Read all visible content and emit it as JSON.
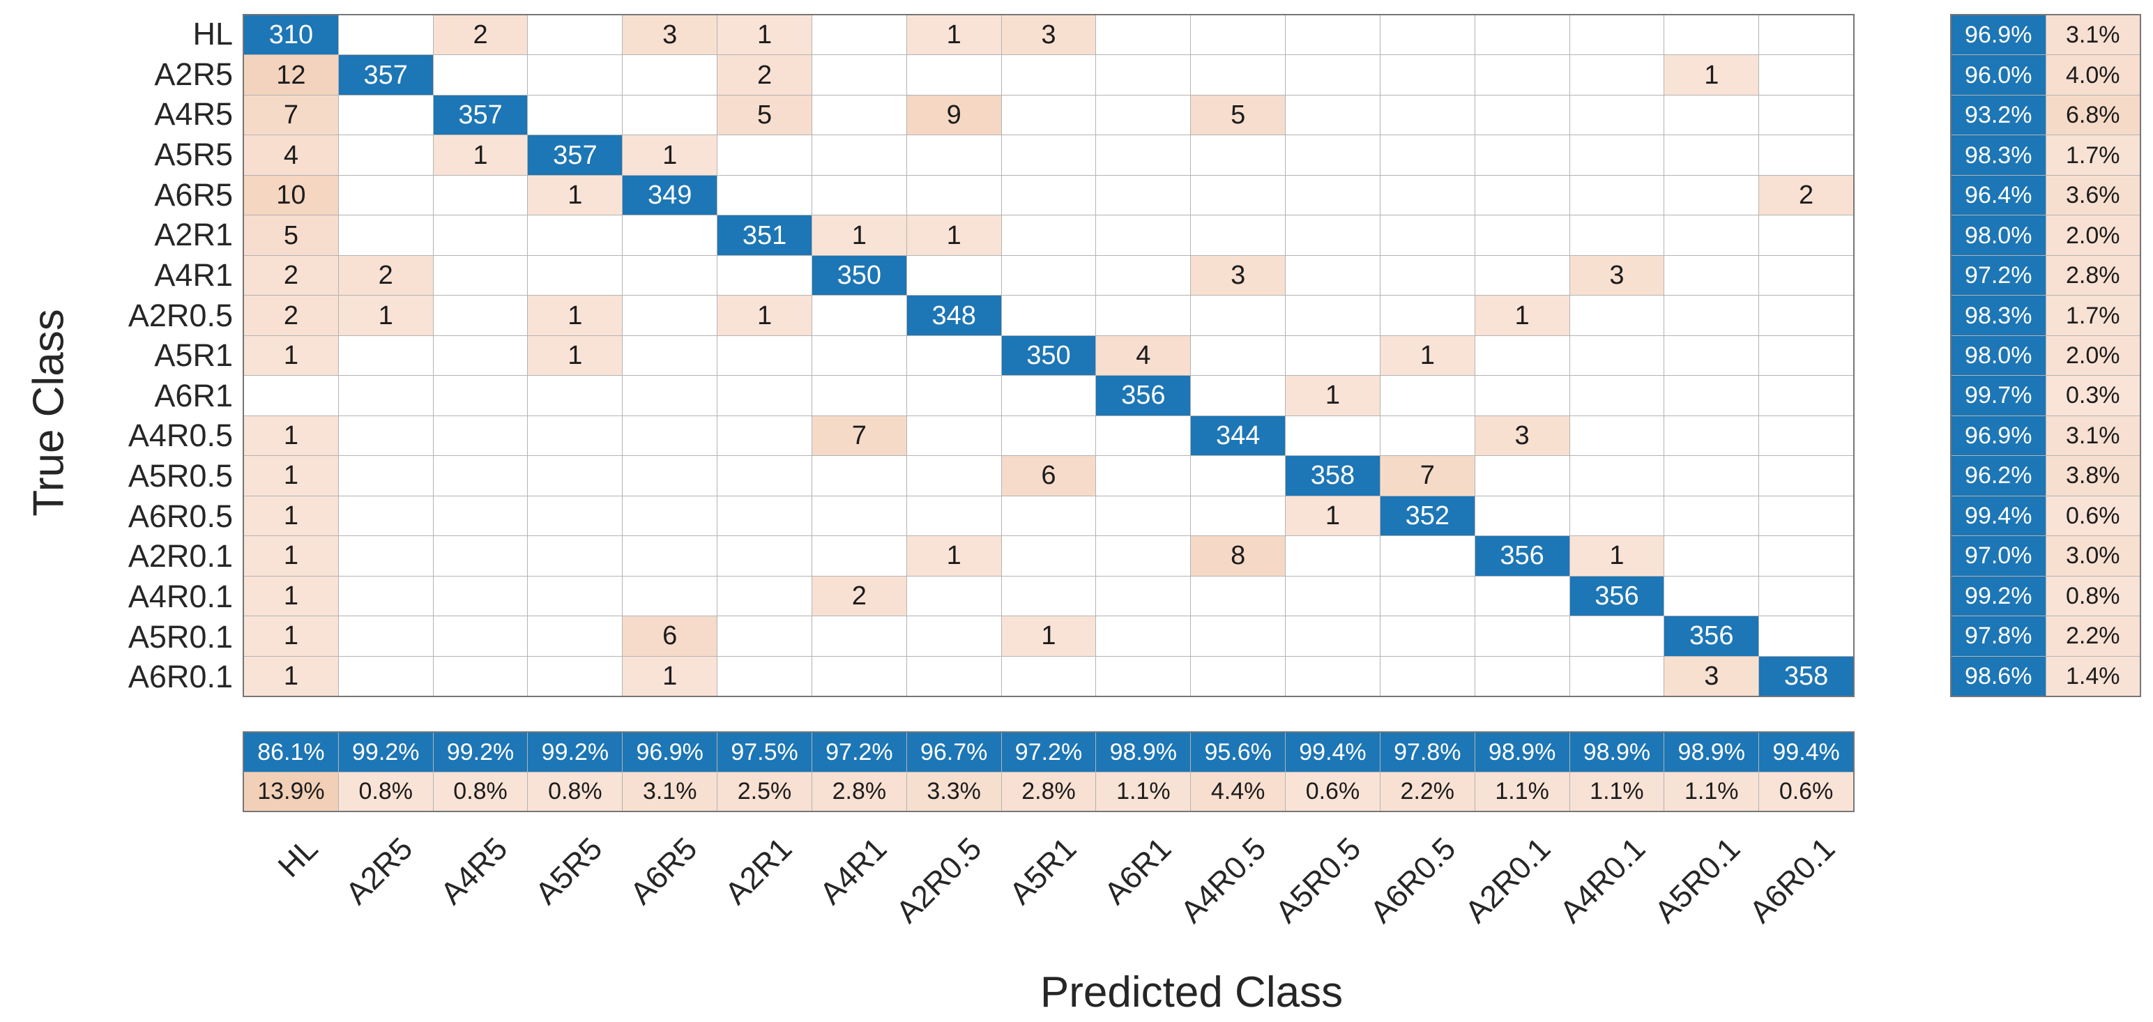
{
  "figure": {
    "x_axis_title": "Predicted Class",
    "y_axis_title": "True Class"
  },
  "chart_data": {
    "type": "heatmap",
    "subtype": "confusion-matrix",
    "title": "",
    "xlabel": "Predicted Class",
    "ylabel": "True Class",
    "legend_position": "none",
    "grid": true,
    "classes": [
      "HL",
      "A2R5",
      "A4R5",
      "A5R5",
      "A6R5",
      "A2R1",
      "A4R1",
      "A2R0.5",
      "A5R1",
      "A6R1",
      "A4R0.5",
      "A5R0.5",
      "A6R0.5",
      "A2R0.1",
      "A4R0.1",
      "A5R0.1",
      "A6R0.1"
    ],
    "matrix": [
      [
        310,
        0,
        2,
        0,
        3,
        1,
        0,
        1,
        3,
        0,
        0,
        0,
        0,
        0,
        0,
        0,
        0
      ],
      [
        12,
        357,
        0,
        0,
        0,
        2,
        0,
        0,
        0,
        0,
        0,
        0,
        0,
        0,
        0,
        1,
        0
      ],
      [
        7,
        0,
        357,
        0,
        0,
        5,
        0,
        9,
        0,
        0,
        5,
        0,
        0,
        0,
        0,
        0,
        0
      ],
      [
        4,
        0,
        1,
        357,
        1,
        0,
        0,
        0,
        0,
        0,
        0,
        0,
        0,
        0,
        0,
        0,
        0
      ],
      [
        10,
        0,
        0,
        1,
        349,
        0,
        0,
        0,
        0,
        0,
        0,
        0,
        0,
        0,
        0,
        0,
        2
      ],
      [
        5,
        0,
        0,
        0,
        0,
        351,
        1,
        1,
        0,
        0,
        0,
        0,
        0,
        0,
        0,
        0,
        0
      ],
      [
        2,
        2,
        0,
        0,
        0,
        0,
        350,
        0,
        0,
        0,
        3,
        0,
        0,
        0,
        3,
        0,
        0
      ],
      [
        2,
        1,
        0,
        1,
        0,
        1,
        0,
        348,
        0,
        0,
        0,
        0,
        0,
        1,
        0,
        0,
        0
      ],
      [
        1,
        0,
        0,
        1,
        0,
        0,
        0,
        0,
        350,
        4,
        0,
        0,
        1,
        0,
        0,
        0,
        0
      ],
      [
        0,
        0,
        0,
        0,
        0,
        0,
        0,
        0,
        0,
        356,
        0,
        1,
        0,
        0,
        0,
        0,
        0
      ],
      [
        1,
        0,
        0,
        0,
        0,
        0,
        7,
        0,
        0,
        0,
        344,
        0,
        0,
        3,
        0,
        0,
        0
      ],
      [
        1,
        0,
        0,
        0,
        0,
        0,
        0,
        0,
        6,
        0,
        0,
        358,
        7,
        0,
        0,
        0,
        0
      ],
      [
        1,
        0,
        0,
        0,
        0,
        0,
        0,
        0,
        0,
        0,
        0,
        1,
        352,
        0,
        0,
        0,
        0
      ],
      [
        1,
        0,
        0,
        0,
        0,
        0,
        0,
        1,
        0,
        0,
        8,
        0,
        0,
        356,
        1,
        0,
        0
      ],
      [
        1,
        0,
        0,
        0,
        0,
        0,
        2,
        0,
        0,
        0,
        0,
        0,
        0,
        0,
        356,
        0,
        0
      ],
      [
        1,
        0,
        0,
        0,
        6,
        0,
        0,
        0,
        1,
        0,
        0,
        0,
        0,
        0,
        0,
        356,
        0
      ],
      [
        1,
        0,
        0,
        0,
        1,
        0,
        0,
        0,
        0,
        0,
        0,
        0,
        0,
        0,
        0,
        3,
        358
      ]
    ],
    "row_summary_correct_pct": [
      "96.9%",
      "96.0%",
      "93.2%",
      "98.3%",
      "96.4%",
      "98.0%",
      "97.2%",
      "98.3%",
      "98.0%",
      "99.7%",
      "96.9%",
      "96.2%",
      "99.4%",
      "97.0%",
      "99.2%",
      "97.8%",
      "98.6%"
    ],
    "row_summary_incorrect_pct": [
      "3.1%",
      "4.0%",
      "6.8%",
      "1.7%",
      "3.6%",
      "2.0%",
      "2.8%",
      "1.7%",
      "2.0%",
      "0.3%",
      "3.1%",
      "3.8%",
      "0.6%",
      "3.0%",
      "0.8%",
      "2.2%",
      "1.4%"
    ],
    "col_summary_correct_pct": [
      "86.1%",
      "99.2%",
      "99.2%",
      "99.2%",
      "96.9%",
      "97.5%",
      "97.2%",
      "96.7%",
      "97.2%",
      "98.9%",
      "95.6%",
      "99.4%",
      "97.8%",
      "98.9%",
      "98.9%",
      "98.9%",
      "99.4%"
    ],
    "col_summary_incorrect_pct": [
      "13.9%",
      "0.8%",
      "0.8%",
      "0.8%",
      "3.1%",
      "2.5%",
      "2.8%",
      "3.3%",
      "2.8%",
      "1.1%",
      "4.4%",
      "0.6%",
      "2.2%",
      "1.1%",
      "1.1%",
      "1.1%",
      "0.6%"
    ],
    "colors": {
      "diagonal_blue": "#1d76b5",
      "off_diagonal_pink_light": "#f9e4d8",
      "off_diagonal_pink_strong": "#f2d0b8",
      "zero_cell": "#ffffff",
      "gridline": "#b3b3b3",
      "frame": "#767676",
      "text_on_blue": "#ffffff",
      "text_dark": "#1c1c1c"
    }
  }
}
